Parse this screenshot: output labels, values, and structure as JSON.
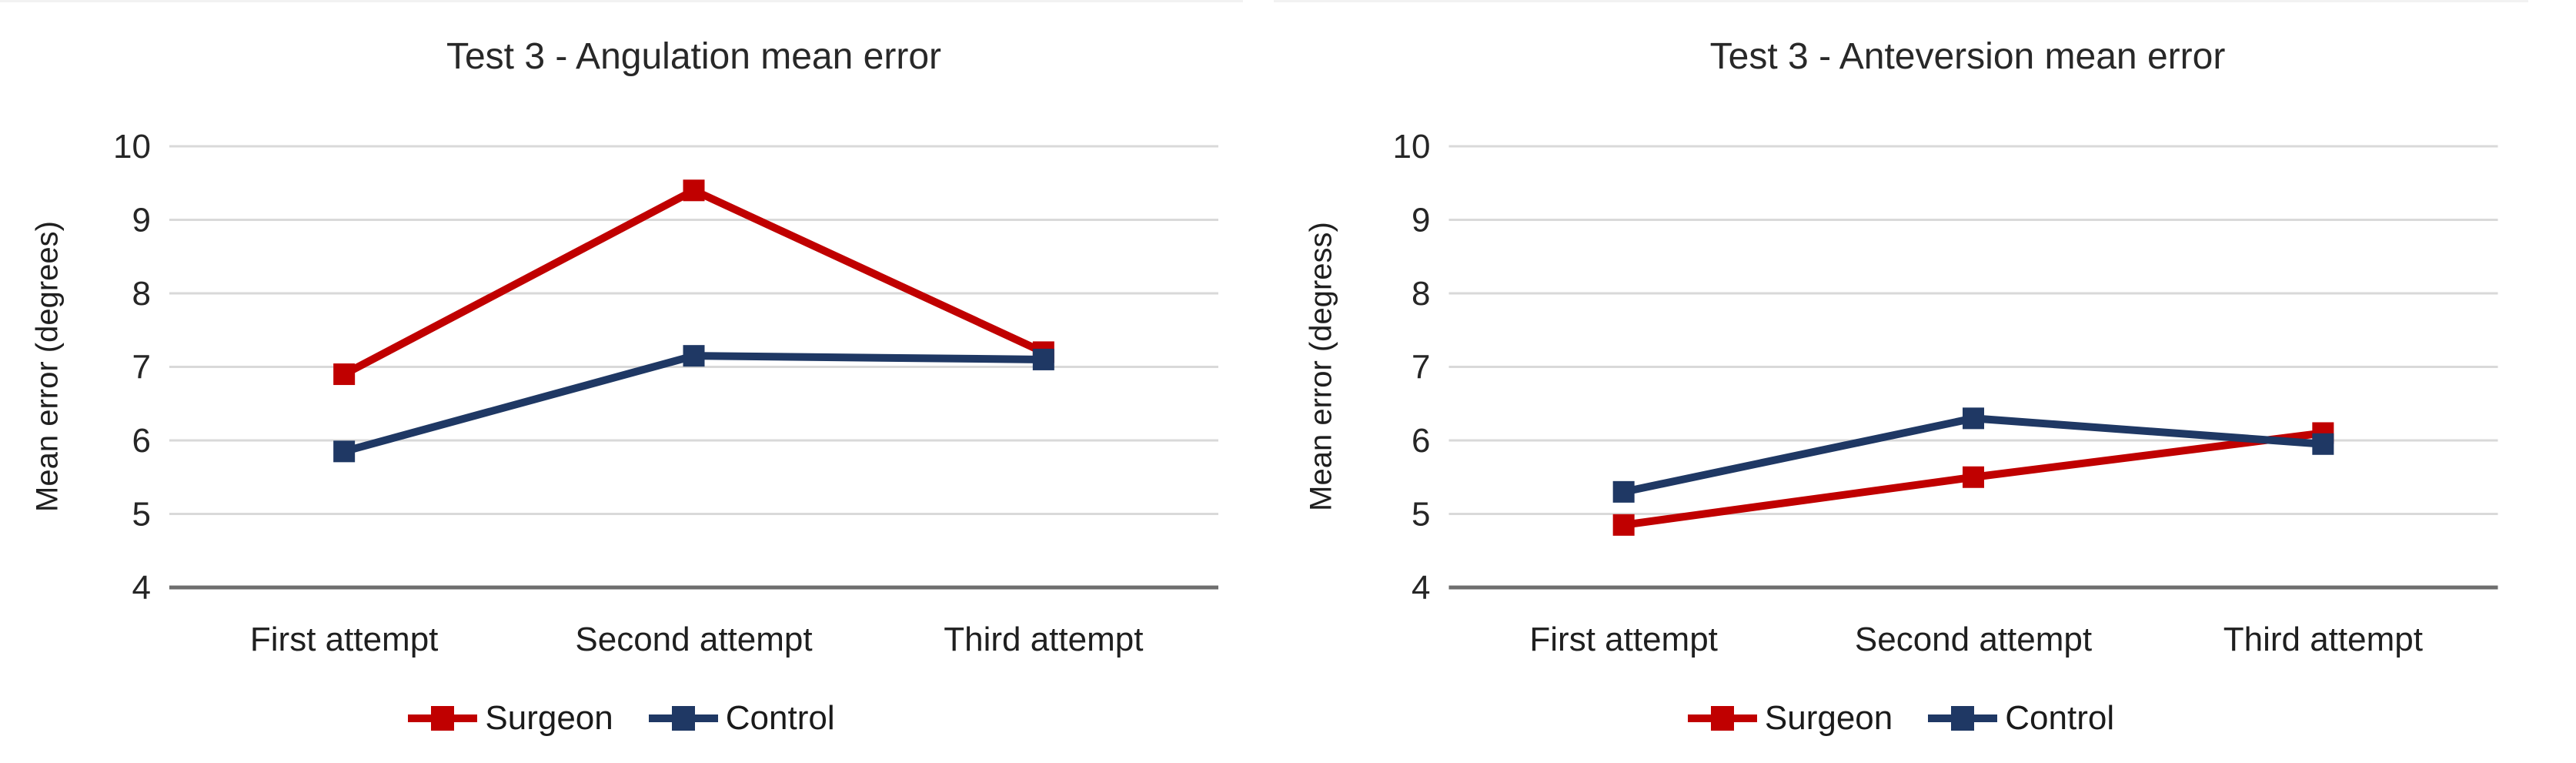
{
  "figure": {
    "background": "#ffffff",
    "top_border_color": "#f2f2f2"
  },
  "colors": {
    "grid": "#d9d9d9",
    "axis_line": "#6e6e6e",
    "tick_text": "#262626",
    "category_text": "#1f1f1f",
    "title_text": "#282828",
    "surgeon": "#c00000",
    "control": "#1f3864"
  },
  "chart_data": [
    {
      "type": "line",
      "title": "Test 3 - Angulation mean error",
      "xlabel": "",
      "ylabel": "Mean error (degrees)",
      "categories": [
        "First attempt",
        "Second attempt",
        "Third attempt"
      ],
      "series": [
        {
          "name": "Surgeon",
          "color": "#c00000",
          "marker": "square",
          "values": [
            6.9,
            9.4,
            7.2
          ]
        },
        {
          "name": "Control",
          "color": "#1f3864",
          "marker": "square",
          "values": [
            5.85,
            7.15,
            7.1
          ]
        }
      ],
      "ylim": [
        4,
        10
      ],
      "yticks": [
        4,
        5,
        6,
        7,
        8,
        9,
        10
      ],
      "grid": true,
      "legend_position": "bottom"
    },
    {
      "type": "line",
      "title": "Test 3 - Anteversion mean error",
      "xlabel": "",
      "ylabel": "Mean error (degress)",
      "categories": [
        "First attempt",
        "Second attempt",
        "Third attempt"
      ],
      "series": [
        {
          "name": "Surgeon",
          "color": "#c00000",
          "marker": "square",
          "values": [
            4.85,
            5.5,
            6.1
          ]
        },
        {
          "name": "Control",
          "color": "#1f3864",
          "marker": "square",
          "values": [
            5.3,
            6.3,
            5.95
          ]
        }
      ],
      "ylim": [
        4,
        10
      ],
      "yticks": [
        4,
        5,
        6,
        7,
        8,
        9,
        10
      ],
      "grid": true,
      "legend_position": "bottom"
    }
  ]
}
